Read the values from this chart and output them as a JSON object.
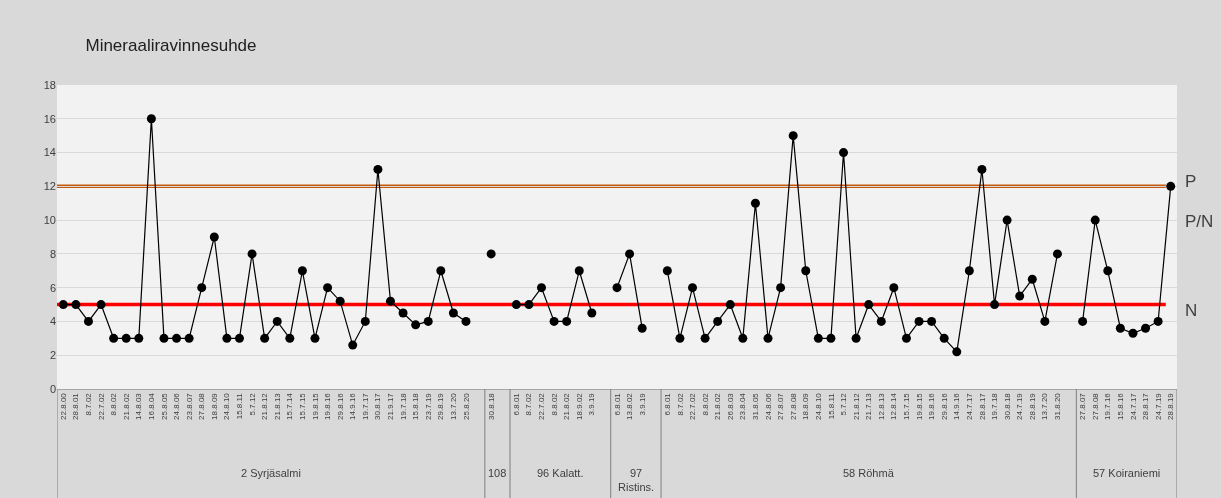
{
  "chart_data": {
    "type": "line",
    "title": "Mineraaliravinnesuhde",
    "categories": [
      "22.8.00",
      "28.8.01",
      "8.7.02",
      "22.7.02",
      "8.8.02",
      "21.8.02",
      "14.8.03",
      "16.8.04",
      "25.8.05",
      "24.8.06",
      "23.8.07",
      "27.8.08",
      "18.8.09",
      "24.8.10",
      "15.8.11",
      "5.7.12",
      "21.8.12",
      "21.8.13",
      "15.7.14",
      "15.7.15",
      "19.8.15",
      "19.8.16",
      "29.8.16",
      "14.9.16",
      "19.7.17",
      "30.8.17",
      "21.9.17",
      "19.7.18",
      "15.8.18",
      "23.7.19",
      "29.8.19",
      "13.7.20",
      "25.8.20",
      null,
      "30.8.18",
      null,
      "6.8.01",
      "8.7.02",
      "22.7.02",
      "8.8.02",
      "21.8.02",
      "18.9.02",
      "3.9.19",
      null,
      "6.8.01",
      "13.8.02",
      "3.9.19",
      null,
      "6.8.01",
      "8.7.02",
      "22.7.02",
      "8.8.02",
      "21.8.02",
      "26.8.03",
      "23.8.04",
      "31.8.05",
      "24.8.06",
      "27.8.07",
      "27.8.08",
      "18.8.09",
      "24.8.10",
      "15.8.11",
      "5.7.12",
      "21.8.12",
      "21.7.13",
      "12.8.13",
      "12.8.14",
      "15.7.15",
      "19.8.15",
      "19.8.16",
      "29.8.16",
      "14.9.16",
      "24.7.17",
      "28.8.17",
      "19.7.18",
      "30.8.18",
      "24.7.19",
      "28.8.19",
      "13.7.20",
      "31.8.20",
      null,
      "27.8.07",
      "27.8.08",
      "19.7.16",
      "15.8.16",
      "24.7.17",
      "28.8.17",
      "24.7.19",
      "28.8.19"
    ],
    "series": [
      {
        "color": "#000000",
        "values": [
          5,
          5,
          4,
          5,
          3,
          3,
          3,
          16,
          3,
          3,
          3,
          6,
          9,
          3,
          3,
          8,
          3,
          4,
          3,
          7,
          3,
          6,
          5.2,
          2.6,
          4,
          13,
          5.2,
          4.5,
          3.8,
          4,
          7,
          4.5,
          4,
          null,
          8,
          null,
          5,
          5,
          6,
          4,
          4,
          7,
          4.5,
          null,
          6,
          8,
          3.6,
          null,
          7,
          3,
          6,
          3,
          4,
          5,
          3,
          11,
          3,
          6,
          15,
          7,
          3,
          3,
          14,
          3,
          5,
          4,
          6,
          3,
          4,
          4,
          3,
          2.2,
          7,
          13,
          5,
          10,
          5.5,
          6.5,
          4,
          8,
          null,
          4,
          10,
          7,
          3.6,
          3.3,
          3.6,
          4,
          12
        ]
      }
    ],
    "ylim": [
      0,
      18
    ],
    "yticks": [
      0,
      2,
      4,
      6,
      8,
      10,
      12,
      14,
      16,
      18
    ],
    "grid": "y",
    "marker": "circle",
    "line_style": "solid",
    "ref_lines": [
      {
        "axis": "y",
        "value": 12,
        "color": "#c55a11"
      },
      {
        "axis": "y",
        "value": 5,
        "color": "#ff0000"
      }
    ],
    "annotations": [
      "2 Syrjäsalmi",
      "108",
      "96 Kalatt.",
      "97 Ristins.",
      "58 Röhmä",
      "57 Koiraniemi",
      "P",
      "P/N",
      "N"
    ]
  }
}
